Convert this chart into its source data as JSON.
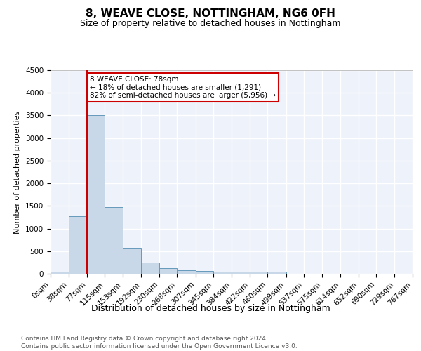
{
  "title1": "8, WEAVE CLOSE, NOTTINGHAM, NG6 0FH",
  "title2": "Size of property relative to detached houses in Nottingham",
  "xlabel": "Distribution of detached houses by size in Nottingham",
  "ylabel": "Number of detached properties",
  "bar_edges": [
    0,
    38,
    77,
    115,
    153,
    192,
    230,
    268,
    307,
    345,
    384,
    422,
    460,
    499,
    537,
    575,
    614,
    652,
    690,
    729,
    767
  ],
  "bar_heights": [
    50,
    1280,
    3500,
    1480,
    580,
    245,
    130,
    80,
    55,
    40,
    40,
    40,
    50,
    0,
    0,
    0,
    0,
    0,
    0,
    0
  ],
  "bar_color": "#c8d8e8",
  "bar_edgecolor": "#6699bb",
  "background_color": "#eef2fa",
  "grid_color": "#ffffff",
  "vline_x": 78,
  "vline_color": "#cc0000",
  "annotation_text": "8 WEAVE CLOSE: 78sqm\n← 18% of detached houses are smaller (1,291)\n82% of semi-detached houses are larger (5,956) →",
  "annotation_box_color": "#ffffff",
  "annotation_box_edgecolor": "#cc0000",
  "ylim": [
    0,
    4500
  ],
  "yticks": [
    0,
    500,
    1000,
    1500,
    2000,
    2500,
    3000,
    3500,
    4000,
    4500
  ],
  "xlabel_ticks": [
    "0sqm",
    "38sqm",
    "77sqm",
    "115sqm",
    "153sqm",
    "192sqm",
    "230sqm",
    "268sqm",
    "307sqm",
    "345sqm",
    "384sqm",
    "422sqm",
    "460sqm",
    "499sqm",
    "537sqm",
    "575sqm",
    "614sqm",
    "652sqm",
    "690sqm",
    "729sqm",
    "767sqm"
  ],
  "footnote": "Contains HM Land Registry data © Crown copyright and database right 2024.\nContains public sector information licensed under the Open Government Licence v3.0.",
  "title1_fontsize": 11,
  "title2_fontsize": 9,
  "xlabel_fontsize": 9,
  "ylabel_fontsize": 8,
  "tick_fontsize": 7.5,
  "footnote_fontsize": 6.5
}
